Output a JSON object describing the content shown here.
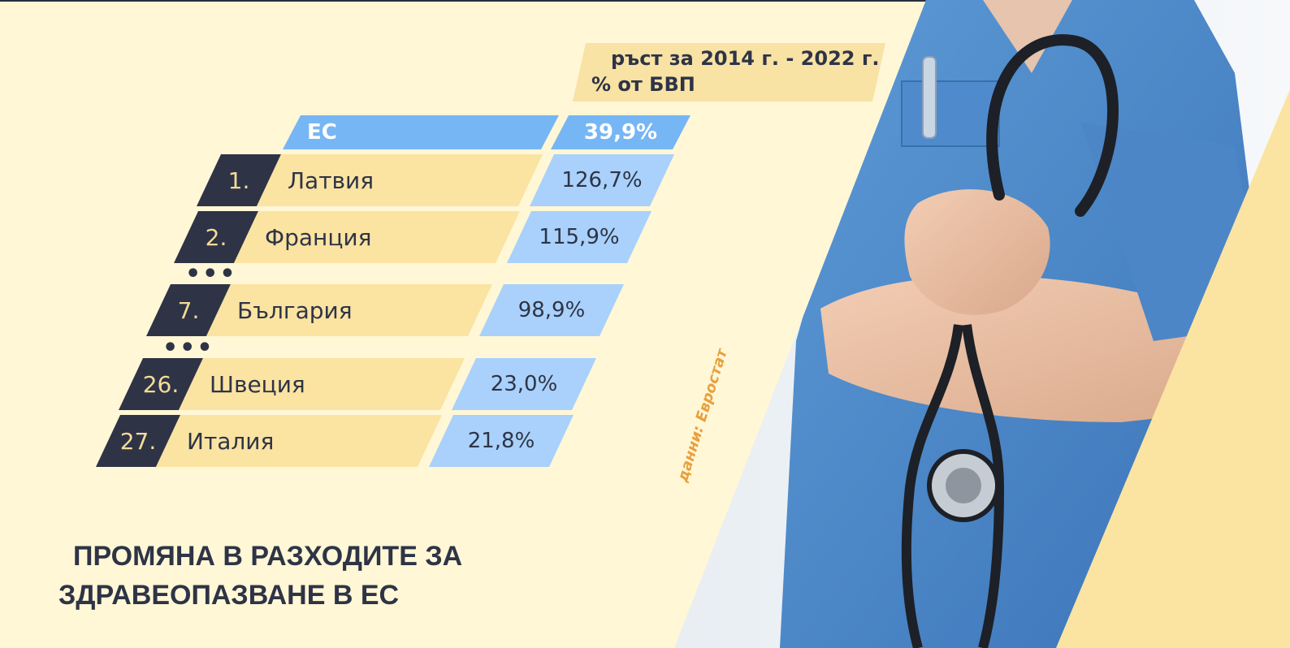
{
  "header": {
    "line1": "ръст за 2014 г. - 2022 г.",
    "line2": "% от БВП"
  },
  "eu": {
    "label": "ЕС",
    "value": "39,9%"
  },
  "rows": [
    {
      "rank": "1.",
      "country": "Латвия",
      "value": "126,7%"
    },
    {
      "rank": "2.",
      "country": "Франция",
      "value": "115,9%"
    },
    {
      "rank": "7.",
      "country": "България",
      "value": "98,9%"
    },
    {
      "rank": "26.",
      "country": "Швеция",
      "value": "23,0%"
    },
    {
      "rank": "27.",
      "country": "Италия",
      "value": "21,8%"
    }
  ],
  "ellipsis": "•••",
  "title": {
    "line1": "ПРОМЯНА В РАЗХОДИТЕ ЗА",
    "line2": "ЗДРАВЕОПАЗВАНЕ В ЕС"
  },
  "source": "данни: Евростат",
  "colors": {
    "background": "#fff7d6",
    "dark": "#2e3446",
    "country_bg": "#fbe3a2",
    "value_bg": "#a9d1fb",
    "eu_bg": "#77b6f4",
    "accent": "#e8a03e"
  },
  "photo": "doctor-with-stethoscope-image"
}
